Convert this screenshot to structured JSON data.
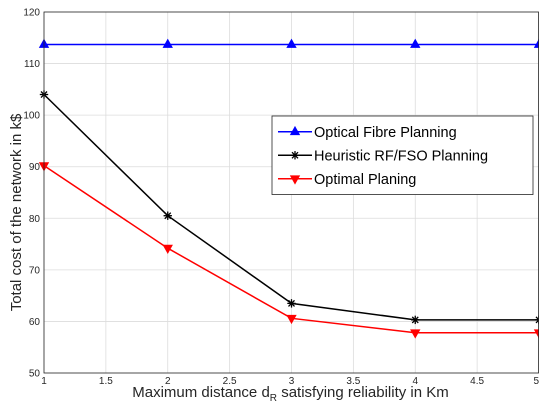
{
  "chart_data": {
    "type": "line",
    "xlabel_prefix": "Maximum distance d",
    "xlabel_subscript": "R",
    "xlabel_suffix": " satisfying reliability in Km",
    "ylabel": "Total cost of the network in k$",
    "xlim": [
      1,
      5
    ],
    "ylim": [
      50,
      120
    ],
    "xticks": [
      "1",
      "1.5",
      "2",
      "2.5",
      "3",
      "3.5",
      "4",
      "4.5",
      "5"
    ],
    "yticks": [
      "50",
      "60",
      "70",
      "80",
      "90",
      "100",
      "110",
      "120"
    ],
    "grid": true,
    "legend_position": "center-right",
    "x": [
      1,
      2,
      3,
      4,
      5
    ],
    "series": [
      {
        "name": "Optical Fibre Planning",
        "values": [
          113.7,
          113.7,
          113.7,
          113.7,
          113.7
        ],
        "color": "#0000ff",
        "marker": "triangle-up"
      },
      {
        "name": "Heuristic RF/FSO Planning",
        "values": [
          104,
          80.5,
          63.5,
          60.3,
          60.3
        ],
        "color": "#000000",
        "marker": "asterisk"
      },
      {
        "name": "Optimal Planing",
        "values": [
          90.2,
          74.2,
          60.6,
          57.8,
          57.8
        ],
        "color": "#ff0000",
        "marker": "triangle-down"
      }
    ]
  }
}
